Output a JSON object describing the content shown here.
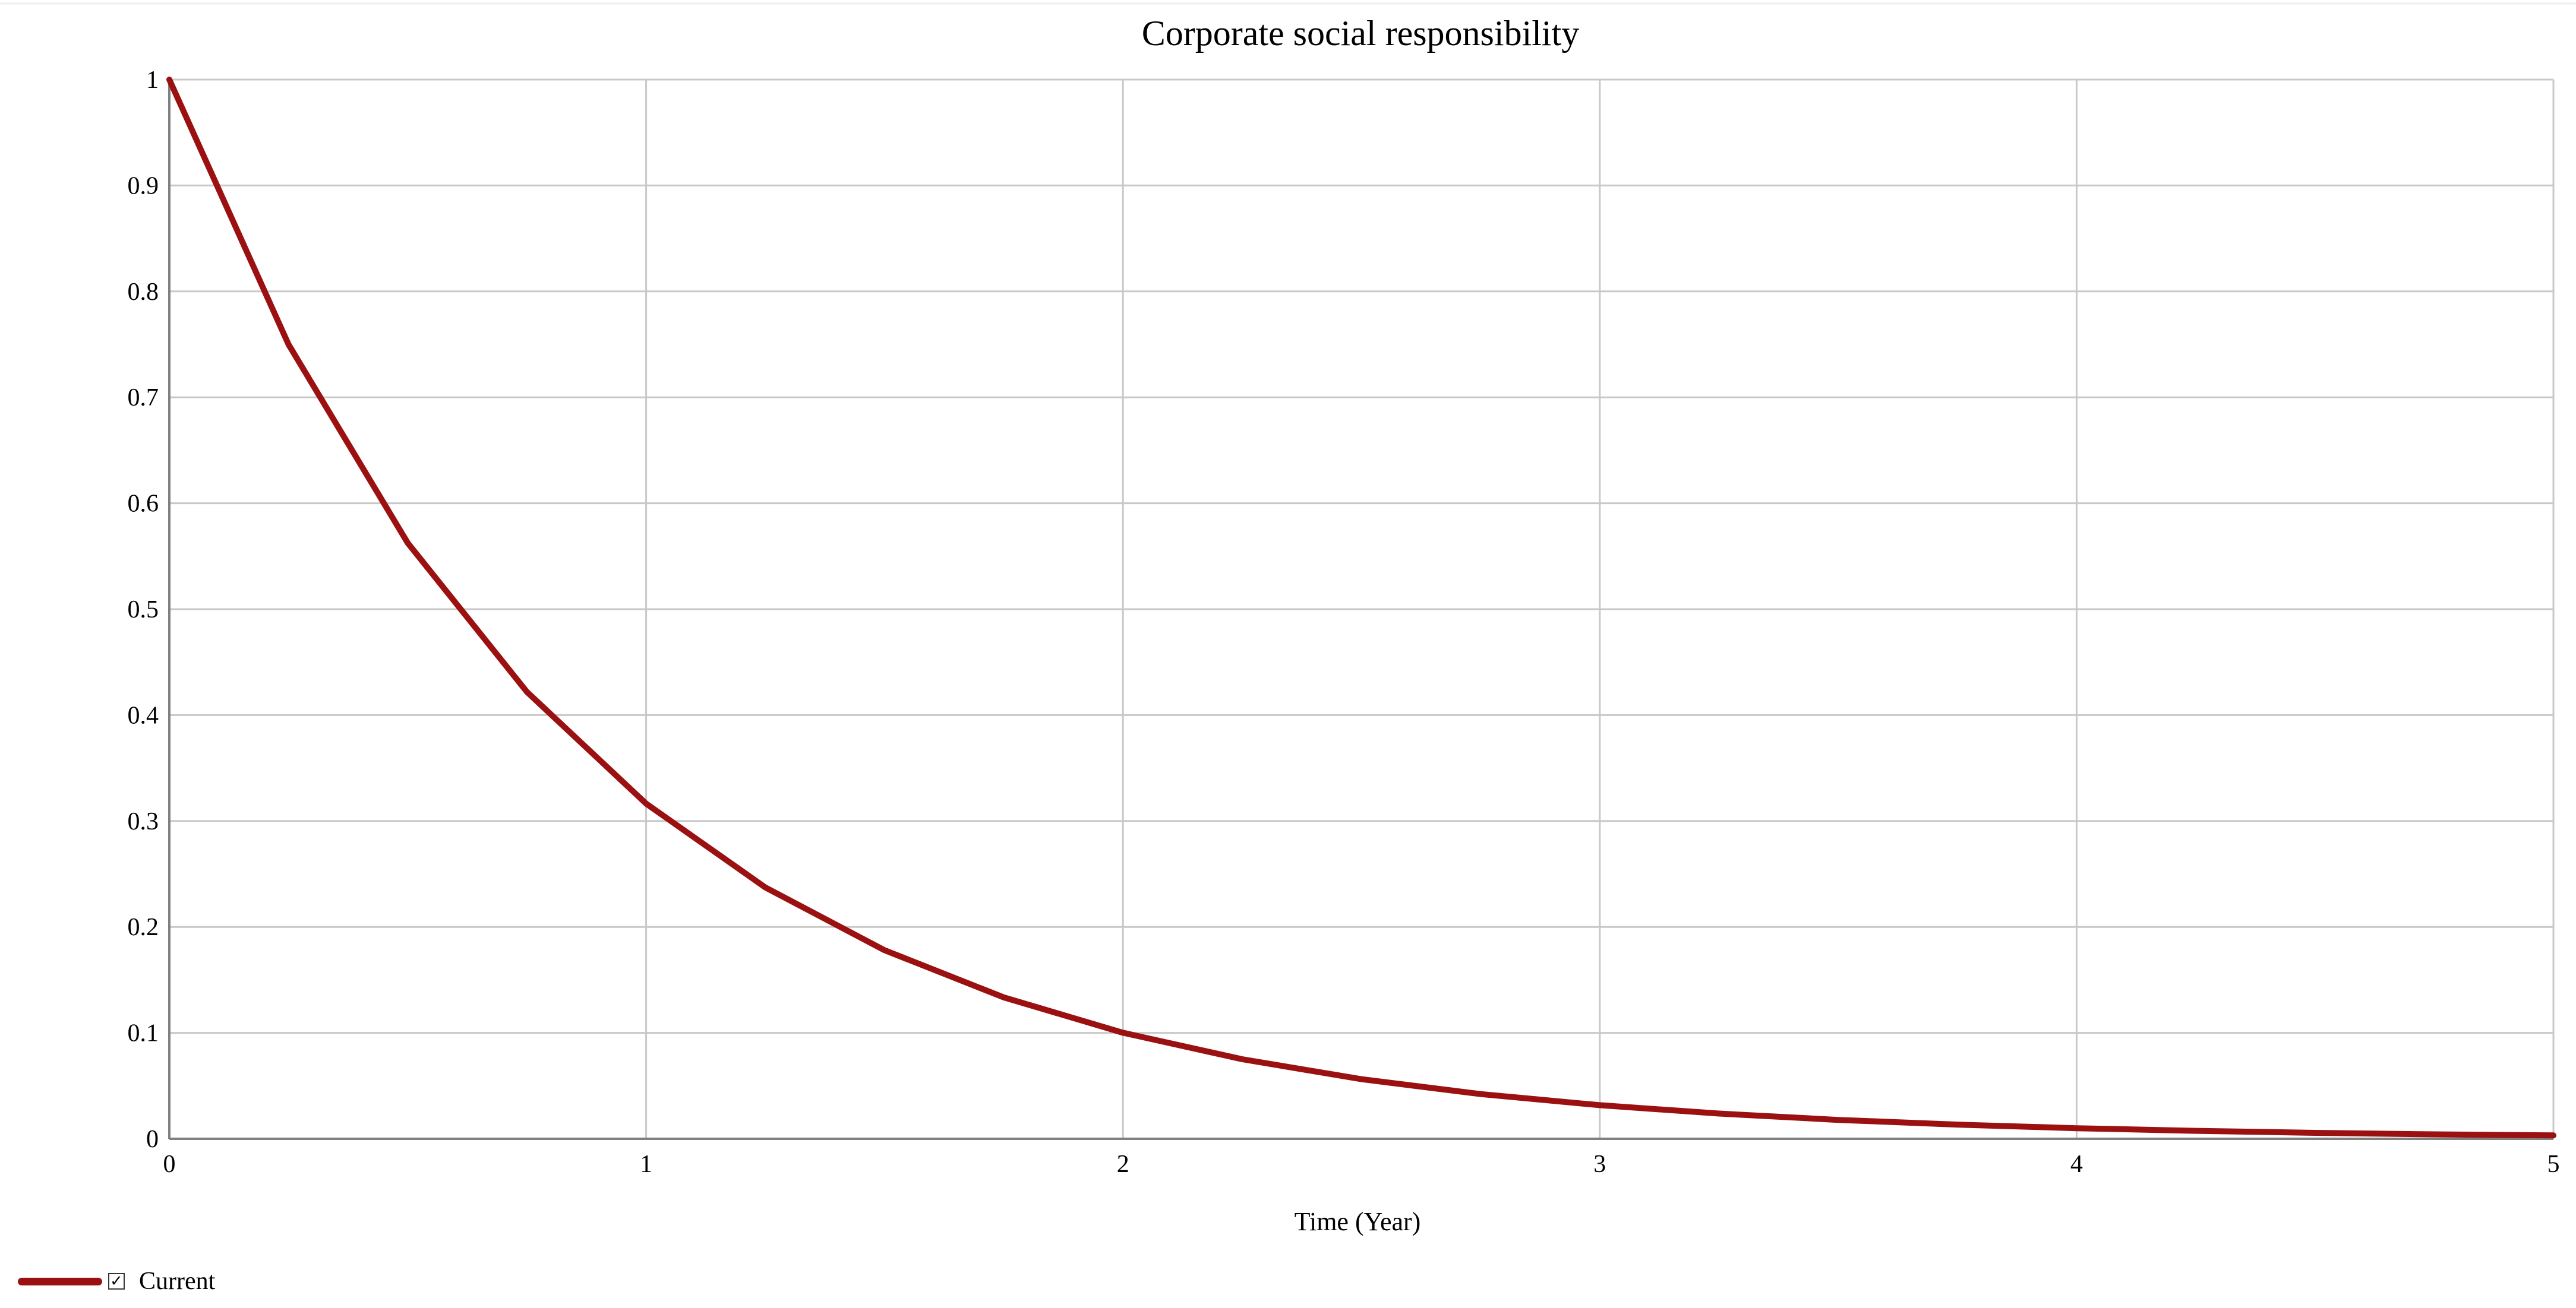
{
  "chart_data": {
    "type": "line",
    "title": "Corporate social responsibility",
    "xlabel": "Time (Year)",
    "ylabel": "",
    "xlim": [
      0,
      5
    ],
    "ylim": [
      0,
      1
    ],
    "x_ticks": [
      "0",
      "1",
      "2",
      "3",
      "4",
      "5"
    ],
    "y_ticks": [
      "0",
      "0.1",
      "0.2",
      "0.3",
      "0.4",
      "0.5",
      "0.6",
      "0.7",
      "0.8",
      "0.9",
      "1"
    ],
    "grid": true,
    "legend_position": "bottom-left",
    "series": [
      {
        "name": "Current",
        "color": "#9b1111",
        "legend_checked": true,
        "x": [
          0,
          0.25,
          0.5,
          0.75,
          1,
          1.25,
          1.5,
          1.75,
          2,
          2.25,
          2.5,
          2.75,
          3,
          3.25,
          3.5,
          3.75,
          4,
          4.25,
          4.5,
          4.75,
          5
        ],
        "y": [
          1,
          0.75,
          0.5625,
          0.4219,
          0.3164,
          0.2373,
          0.178,
          0.1335,
          0.1001,
          0.0751,
          0.0563,
          0.0422,
          0.0317,
          0.0238,
          0.0178,
          0.0134,
          0.01,
          0.0075,
          0.0056,
          0.0042,
          0.0032
        ]
      }
    ]
  }
}
